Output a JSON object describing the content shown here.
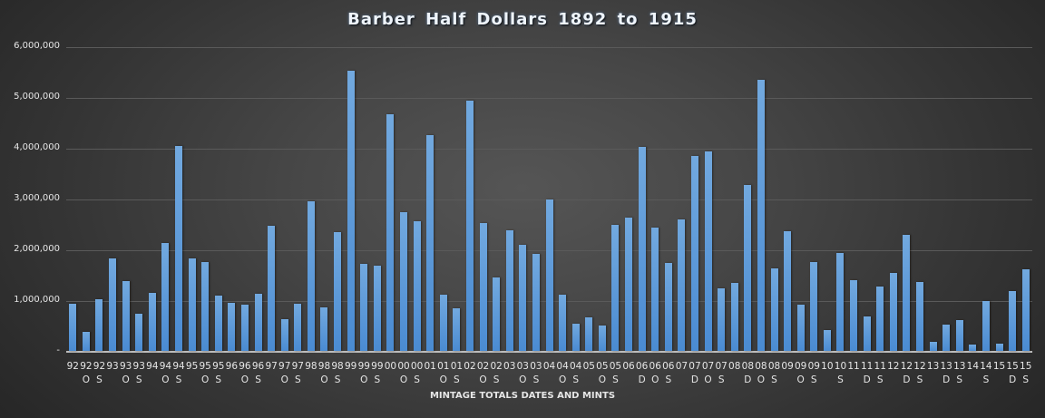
{
  "chart_data": {
    "type": "bar",
    "title": "Barber Half Dollars 1892 to 1915",
    "xlabel": "MINTAGE TOTALS DATES AND MINTS",
    "ylabel": "",
    "ylim": [
      0,
      6000000
    ],
    "grid": true,
    "legend": null,
    "yticks": [
      "-",
      "1,000,000",
      "2,000,000",
      "3,000,000",
      "4,000,000",
      "5,000,000",
      "6,000,000"
    ],
    "categories": [
      {
        "year": "92",
        "mint": ""
      },
      {
        "year": "92",
        "mint": "O"
      },
      {
        "year": "92",
        "mint": "S"
      },
      {
        "year": "93",
        "mint": ""
      },
      {
        "year": "93",
        "mint": "O"
      },
      {
        "year": "93",
        "mint": "S"
      },
      {
        "year": "94",
        "mint": ""
      },
      {
        "year": "94",
        "mint": "O"
      },
      {
        "year": "94",
        "mint": "S"
      },
      {
        "year": "95",
        "mint": ""
      },
      {
        "year": "95",
        "mint": "O"
      },
      {
        "year": "95",
        "mint": "S"
      },
      {
        "year": "96",
        "mint": ""
      },
      {
        "year": "96",
        "mint": "O"
      },
      {
        "year": "96",
        "mint": "S"
      },
      {
        "year": "97",
        "mint": ""
      },
      {
        "year": "97",
        "mint": "O"
      },
      {
        "year": "97",
        "mint": "S"
      },
      {
        "year": "98",
        "mint": ""
      },
      {
        "year": "98",
        "mint": "O"
      },
      {
        "year": "98",
        "mint": "S"
      },
      {
        "year": "99",
        "mint": ""
      },
      {
        "year": "99",
        "mint": "O"
      },
      {
        "year": "99",
        "mint": "S"
      },
      {
        "year": "00",
        "mint": ""
      },
      {
        "year": "00",
        "mint": "O"
      },
      {
        "year": "00",
        "mint": "S"
      },
      {
        "year": "01",
        "mint": ""
      },
      {
        "year": "01",
        "mint": "O"
      },
      {
        "year": "01",
        "mint": "S"
      },
      {
        "year": "02",
        "mint": ""
      },
      {
        "year": "02",
        "mint": "O"
      },
      {
        "year": "02",
        "mint": "S"
      },
      {
        "year": "03",
        "mint": ""
      },
      {
        "year": "03",
        "mint": "O"
      },
      {
        "year": "03",
        "mint": "S"
      },
      {
        "year": "04",
        "mint": ""
      },
      {
        "year": "04",
        "mint": "O"
      },
      {
        "year": "04",
        "mint": "S"
      },
      {
        "year": "05",
        "mint": ""
      },
      {
        "year": "05",
        "mint": "O"
      },
      {
        "year": "05",
        "mint": "S"
      },
      {
        "year": "06",
        "mint": ""
      },
      {
        "year": "06",
        "mint": "D"
      },
      {
        "year": "06",
        "mint": "O"
      },
      {
        "year": "06",
        "mint": "S"
      },
      {
        "year": "07",
        "mint": ""
      },
      {
        "year": "07",
        "mint": "D"
      },
      {
        "year": "07",
        "mint": "O"
      },
      {
        "year": "07",
        "mint": "S"
      },
      {
        "year": "08",
        "mint": ""
      },
      {
        "year": "08",
        "mint": "D"
      },
      {
        "year": "08",
        "mint": "O"
      },
      {
        "year": "08",
        "mint": "S"
      },
      {
        "year": "09",
        "mint": ""
      },
      {
        "year": "09",
        "mint": "O"
      },
      {
        "year": "09",
        "mint": "S"
      },
      {
        "year": "10",
        "mint": ""
      },
      {
        "year": "10",
        "mint": "S"
      },
      {
        "year": "11",
        "mint": ""
      },
      {
        "year": "11",
        "mint": "D"
      },
      {
        "year": "11",
        "mint": "S"
      },
      {
        "year": "12",
        "mint": ""
      },
      {
        "year": "12",
        "mint": "D"
      },
      {
        "year": "12",
        "mint": "S"
      },
      {
        "year": "13",
        "mint": ""
      },
      {
        "year": "13",
        "mint": "D"
      },
      {
        "year": "13",
        "mint": "S"
      },
      {
        "year": "14",
        "mint": ""
      },
      {
        "year": "14",
        "mint": "S"
      },
      {
        "year": "15",
        "mint": ""
      },
      {
        "year": "15",
        "mint": "D"
      },
      {
        "year": "15",
        "mint": "S"
      }
    ],
    "values": [
      930000,
      375000,
      1020000,
      1820000,
      1370000,
      730000,
      1140000,
      2130000,
      4040000,
      1820000,
      1750000,
      1090000,
      950000,
      910000,
      1120000,
      2460000,
      630000,
      930000,
      2950000,
      860000,
      2340000,
      5520000,
      1710000,
      1680000,
      4660000,
      2740000,
      2550000,
      4250000,
      1110000,
      840000,
      4920000,
      2520000,
      1450000,
      2380000,
      2090000,
      1910000,
      2980000,
      1110000,
      540000,
      660000,
      500000,
      2480000,
      2620000,
      4020000,
      2430000,
      1730000,
      2590000,
      3840000,
      3930000,
      1230000,
      1340000,
      3270000,
      5340000,
      1630000,
      2360000,
      910000,
      1750000,
      410000,
      1930000,
      1400000,
      680000,
      1270000,
      1540000,
      2290000,
      1360000,
      180000,
      520000,
      600000,
      120000,
      990000,
      140000,
      1170000,
      1600000
    ],
    "bar_color": "#5b9bd5"
  }
}
